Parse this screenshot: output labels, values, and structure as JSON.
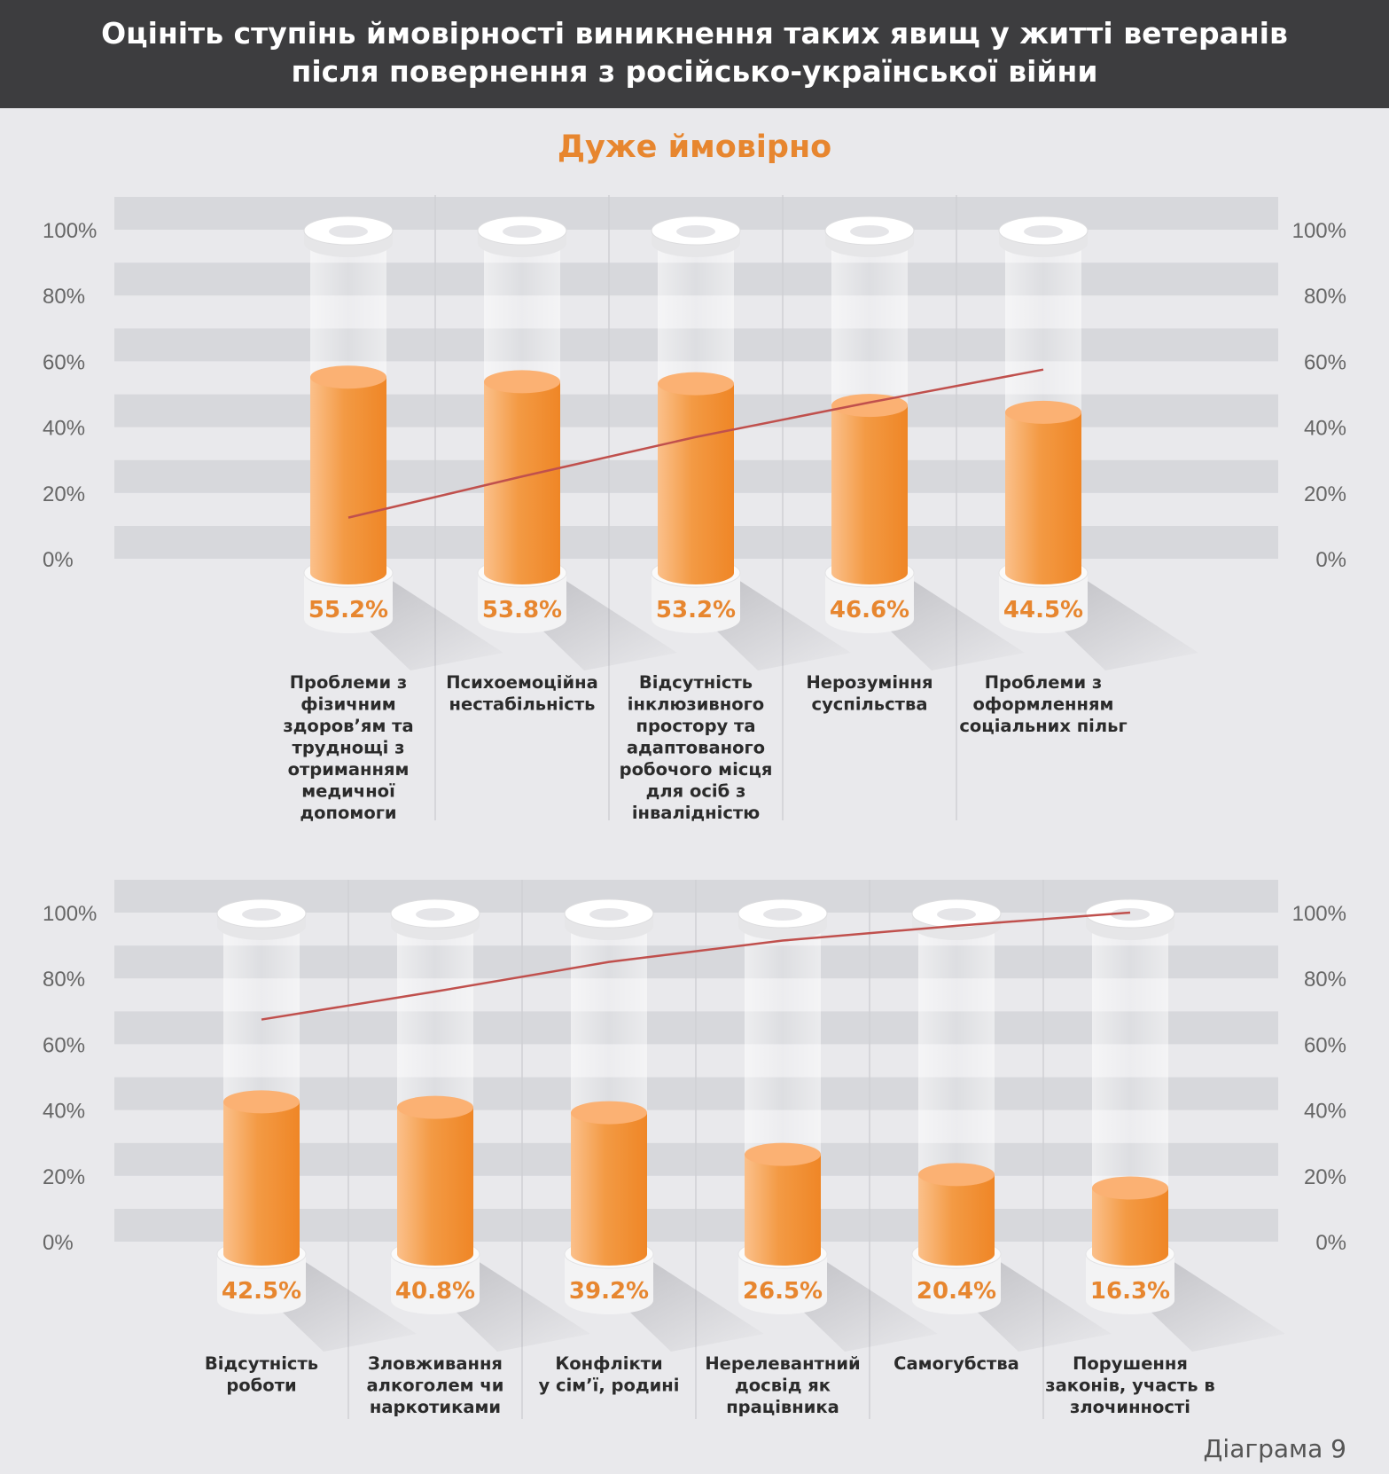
{
  "header": {
    "line1": "Оцініть ступінь ймовірності виникнення таких явищ у житті ветеранів",
    "line2": "після повернення з російсько-української війни"
  },
  "subtitle": "Дуже ймовірно",
  "footer": "Діаграма 9",
  "colors": {
    "header_bg": "#3d3d3f",
    "accent": "#e7862f",
    "bar": "#f39133",
    "line": "#c0504d",
    "band": "#d7d8dc"
  },
  "chart_data": [
    {
      "type": "bar",
      "yticks": [
        "100%",
        "80%",
        "60%",
        "40%",
        "20%",
        "0%"
      ],
      "ylim": [
        0,
        100
      ],
      "categories": [
        "Проблеми з фізичним здоров’ям та труднощі з отриманням медичної допомоги",
        "Психоемоційна нестабільність",
        "Відсутність інклюзивного простору та адаптованого робочого місця для осіб з інвалідністю",
        "Нерозуміння суспільства",
        "Проблеми з оформленням соціальних пільг"
      ],
      "label_lines": [
        [
          "Проблеми з",
          "фізичним",
          "здоров’ям та",
          "труднощі з",
          "отриманням",
          "медичної",
          "допомоги"
        ],
        [
          "Психоемоційна",
          "нестабільність"
        ],
        [
          "Відсутність",
          "інклюзивного",
          "простору та",
          "адаптованого",
          "робочого місця",
          "для осіб з",
          "інвалідністю"
        ],
        [
          "Нерозуміння",
          "суспільства"
        ],
        [
          "Проблеми з",
          "оформленням",
          "соціальних пільг"
        ]
      ],
      "values": [
        55.2,
        53.8,
        53.2,
        46.6,
        44.5
      ],
      "value_labels": [
        "55.2%",
        "53.8%",
        "53.2%",
        "46.6%",
        "44.5%"
      ],
      "line_values": [
        12.5,
        25.0,
        37.0,
        47.5,
        57.5
      ]
    },
    {
      "type": "bar",
      "yticks": [
        "100%",
        "80%",
        "60%",
        "40%",
        "20%",
        "0%"
      ],
      "ylim": [
        0,
        100
      ],
      "categories": [
        "Відсутність роботи",
        "Зловживання алкоголем чи наркотиками",
        "Конфлікти у сім’ї, родині",
        "Нерелевантний досвід як працівника",
        "Самогубства",
        "Порушення законів, участь в злочинності"
      ],
      "label_lines": [
        [
          "Відсутність",
          "роботи"
        ],
        [
          "Зловживання",
          "алкоголем чи",
          "наркотиками"
        ],
        [
          "Конфлікти",
          "у сім’ї, родині"
        ],
        [
          "Нерелевантний",
          "досвід як",
          "працівника"
        ],
        [
          "Самогубства"
        ],
        [
          "Порушення",
          "законів, участь в",
          "злочинності"
        ]
      ],
      "values": [
        42.5,
        40.8,
        39.2,
        26.5,
        20.4,
        16.3
      ],
      "value_labels": [
        "42.5%",
        "40.8%",
        "39.2%",
        "26.5%",
        "20.4%",
        "16.3%"
      ],
      "line_values": [
        67.5,
        76.0,
        85.0,
        91.5,
        96.0,
        100.0
      ]
    }
  ]
}
